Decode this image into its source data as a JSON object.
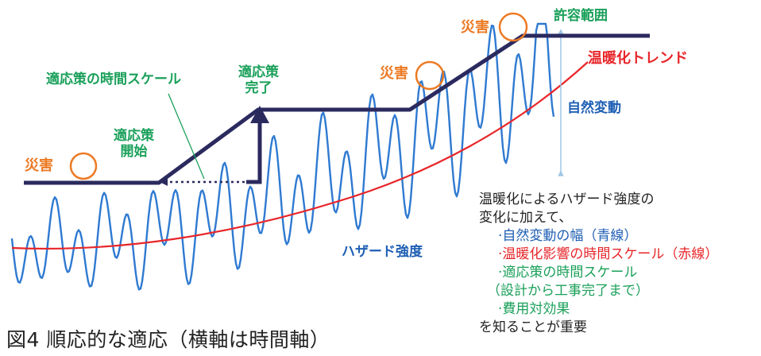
{
  "labels": {
    "disaster": "災害",
    "adapt_timescale": "適応策の時間スケール",
    "adapt_start": [
      "適応策",
      "開始"
    ],
    "adapt_done": [
      "適応策",
      "完了"
    ],
    "tolerance": "許容範囲",
    "warming_trend": "温暖化トレンド",
    "natural_var": "自然変動",
    "hazard": "ハザード強度"
  },
  "caption": "図4 順応的な適応（横軸は時間軸）",
  "notes": {
    "intro1": "温暖化によるハザード強度の",
    "intro2": "変化に加えて、",
    "items": [
      "·自然変動の幅（青線）",
      "·温暖化影響の時間スケール（赤線）",
      "·適応策の時間スケール",
      "（設計から工事完了まで）",
      "·費用対効果"
    ],
    "outro": "を知ることが重要"
  },
  "colors": {
    "hazard_line": "#2f7ad1",
    "trend_line": "#e8262a",
    "tolerance_line": "#2b2a5e",
    "disaster_circle": "#ec7a24",
    "timescale_green": "#1aa05a",
    "natural_var_arrow": "#9ec6e6"
  }
}
